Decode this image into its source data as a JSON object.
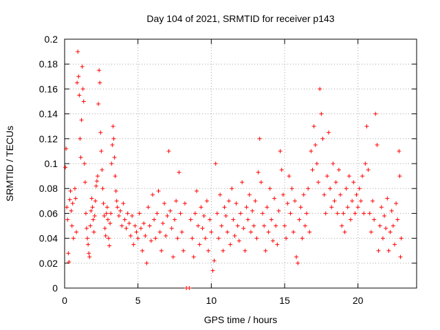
{
  "chart_data": {
    "type": "scatter",
    "title": "Day 104 of 2021, SRMTID for receiver p143",
    "xlabel": "GPS time / hours",
    "ylabel": "SRMTID / TECUs",
    "xlim": [
      0,
      24
    ],
    "ylim": [
      0,
      0.2
    ],
    "xticks": [
      0,
      5,
      10,
      15,
      20
    ],
    "xtick_labels": [
      "0",
      "5",
      "10",
      "15",
      "20"
    ],
    "yticks": [
      0,
      0.02,
      0.04,
      0.06,
      0.08,
      0.1,
      0.12,
      0.14,
      0.16,
      0.18,
      0.2
    ],
    "ytick_labels": [
      "0",
      "0.02",
      "0.04",
      "0.06",
      "0.08",
      "0.1",
      "0.12",
      "0.14",
      "0.16",
      "0.18",
      "0.2"
    ],
    "grid": true,
    "marker": "+",
    "color": "#ff0000",
    "series": [
      {
        "name": "SRMTID",
        "points": [
          [
            0.05,
            0.097
          ],
          [
            0.1,
            0.112
          ],
          [
            0.15,
            0.065
          ],
          [
            0.2,
            0.055
          ],
          [
            0.25,
            0.028
          ],
          [
            0.3,
            0.021
          ],
          [
            0.35,
            0.071
          ],
          [
            0.4,
            0.078
          ],
          [
            0.45,
            0.062
          ],
          [
            0.5,
            0.05
          ],
          [
            0.55,
            0.068
          ],
          [
            0.6,
            0.04
          ],
          [
            0.7,
            0.08
          ],
          [
            0.75,
            0.072
          ],
          [
            0.8,
            0.045
          ],
          [
            0.85,
            0.165
          ],
          [
            0.9,
            0.19
          ],
          [
            0.95,
            0.17
          ],
          [
            1.0,
            0.155
          ],
          [
            1.05,
            0.12
          ],
          [
            1.1,
            0.105
          ],
          [
            1.15,
            0.135
          ],
          [
            1.2,
            0.178
          ],
          [
            1.25,
            0.16
          ],
          [
            1.3,
            0.15
          ],
          [
            1.35,
            0.1
          ],
          [
            1.4,
            0.085
          ],
          [
            1.45,
            0.06
          ],
          [
            1.5,
            0.048
          ],
          [
            1.55,
            0.04
          ],
          [
            1.6,
            0.035
          ],
          [
            1.65,
            0.028
          ],
          [
            1.7,
            0.025
          ],
          [
            1.75,
            0.05
          ],
          [
            1.8,
            0.062
          ],
          [
            1.85,
            0.072
          ],
          [
            1.9,
            0.065
          ],
          [
            1.95,
            0.055
          ],
          [
            2.0,
            0.045
          ],
          [
            2.05,
            0.058
          ],
          [
            2.1,
            0.07
          ],
          [
            2.15,
            0.082
          ],
          [
            2.2,
            0.086
          ],
          [
            2.25,
            0.09
          ],
          [
            2.3,
            0.148
          ],
          [
            2.35,
            0.175
          ],
          [
            2.4,
            0.165
          ],
          [
            2.45,
            0.125
          ],
          [
            2.5,
            0.11
          ],
          [
            2.55,
            0.095
          ],
          [
            2.6,
            0.08
          ],
          [
            2.65,
            0.068
          ],
          [
            2.7,
            0.058
          ],
          [
            2.75,
            0.048
          ],
          [
            2.8,
            0.042
          ],
          [
            2.85,
            0.06
          ],
          [
            2.9,
            0.065
          ],
          [
            2.95,
            0.055
          ],
          [
            3.0,
            0.04
          ],
          [
            3.05,
            0.034
          ],
          [
            3.1,
            0.052
          ],
          [
            3.15,
            0.06
          ],
          [
            3.2,
            0.1
          ],
          [
            3.25,
            0.115
          ],
          [
            3.3,
            0.13
          ],
          [
            3.35,
            0.12
          ],
          [
            3.4,
            0.105
          ],
          [
            3.45,
            0.09
          ],
          [
            3.5,
            0.078
          ],
          [
            3.55,
            0.07
          ],
          [
            3.6,
            0.065
          ],
          [
            3.7,
            0.058
          ],
          [
            3.8,
            0.062
          ],
          [
            3.9,
            0.05
          ],
          [
            4.0,
            0.068
          ],
          [
            4.1,
            0.055
          ],
          [
            4.2,
            0.048
          ],
          [
            4.3,
            0.06
          ],
          [
            4.4,
            0.052
          ],
          [
            4.5,
            0.042
          ],
          [
            4.6,
            0.058
          ],
          [
            4.7,
            0.035
          ],
          [
            4.8,
            0.05
          ],
          [
            4.9,
            0.045
          ],
          [
            5.0,
            0.04
          ],
          [
            5.1,
            0.06
          ],
          [
            5.2,
            0.048
          ],
          [
            5.3,
            0.03
          ],
          [
            5.4,
            0.052
          ],
          [
            5.5,
            0.042
          ],
          [
            5.6,
            0.02
          ],
          [
            5.7,
            0.065
          ],
          [
            5.8,
            0.05
          ],
          [
            5.9,
            0.038
          ],
          [
            6.0,
            0.075
          ],
          [
            6.1,
            0.055
          ],
          [
            6.2,
            0.04
          ],
          [
            6.3,
            0.06
          ],
          [
            6.4,
            0.078
          ],
          [
            6.5,
            0.045
          ],
          [
            6.6,
            0.03
          ],
          [
            6.7,
            0.052
          ],
          [
            6.8,
            0.068
          ],
          [
            6.9,
            0.042
          ],
          [
            7.0,
            0.058
          ],
          [
            7.1,
            0.11
          ],
          [
            7.2,
            0.062
          ],
          [
            7.3,
            0.048
          ],
          [
            7.4,
            0.025
          ],
          [
            7.5,
            0.055
          ],
          [
            7.6,
            0.07
          ],
          [
            7.7,
            0.04
          ],
          [
            7.8,
            0.093
          ],
          [
            7.9,
            0.06
          ],
          [
            8.0,
            0.045
          ],
          [
            8.1,
            0.03
          ],
          [
            8.2,
            0.068
          ],
          [
            8.3,
            0.0
          ],
          [
            8.5,
            0.0
          ],
          [
            8.6,
            0.055
          ],
          [
            8.7,
            0.04
          ],
          [
            8.8,
            0.025
          ],
          [
            8.9,
            0.06
          ],
          [
            9.0,
            0.078
          ],
          [
            9.1,
            0.05
          ],
          [
            9.2,
            0.035
          ],
          [
            9.3,
            0.065
          ],
          [
            9.4,
            0.048
          ],
          [
            9.5,
            0.058
          ],
          [
            9.6,
            0.04
          ],
          [
            9.7,
            0.07
          ],
          [
            9.8,
            0.03
          ],
          [
            9.9,
            0.055
          ],
          [
            10.0,
            0.045
          ],
          [
            10.1,
            0.014
          ],
          [
            10.2,
            0.022
          ],
          [
            10.3,
            0.1
          ],
          [
            10.4,
            0.06
          ],
          [
            10.5,
            0.04
          ],
          [
            10.6,
            0.075
          ],
          [
            10.7,
            0.05
          ],
          [
            10.8,
            0.03
          ],
          [
            10.9,
            0.065
          ],
          [
            11.0,
            0.058
          ],
          [
            11.1,
            0.045
          ],
          [
            11.2,
            0.07
          ],
          [
            11.3,
            0.035
          ],
          [
            11.4,
            0.08
          ],
          [
            11.5,
            0.055
          ],
          [
            11.6,
            0.042
          ],
          [
            11.7,
            0.068
          ],
          [
            11.8,
            0.05
          ],
          [
            11.9,
            0.038
          ],
          [
            12.0,
            0.06
          ],
          [
            12.1,
            0.085
          ],
          [
            12.2,
            0.048
          ],
          [
            12.3,
            0.03
          ],
          [
            12.4,
            0.065
          ],
          [
            12.5,
            0.055
          ],
          [
            12.6,
            0.075
          ],
          [
            12.7,
            0.045
          ],
          [
            12.8,
            0.062
          ],
          [
            12.9,
            0.05
          ],
          [
            13.0,
            0.07
          ],
          [
            13.1,
            0.04
          ],
          [
            13.2,
            0.093
          ],
          [
            13.3,
            0.12
          ],
          [
            13.4,
            0.085
          ],
          [
            13.5,
            0.06
          ],
          [
            13.6,
            0.05
          ],
          [
            13.7,
            0.03
          ],
          [
            13.8,
            0.065
          ],
          [
            13.9,
            0.045
          ],
          [
            14.0,
            0.08
          ],
          [
            14.1,
            0.055
          ],
          [
            14.2,
            0.038
          ],
          [
            14.3,
            0.072
          ],
          [
            14.4,
            0.05
          ],
          [
            14.5,
            0.035
          ],
          [
            14.6,
            0.062
          ],
          [
            14.7,
            0.11
          ],
          [
            14.8,
            0.095
          ],
          [
            14.9,
            0.075
          ],
          [
            15.0,
            0.05
          ],
          [
            15.1,
            0.04
          ],
          [
            15.2,
            0.068
          ],
          [
            15.3,
            0.09
          ],
          [
            15.4,
            0.06
          ],
          [
            15.5,
            0.08
          ],
          [
            15.6,
            0.045
          ],
          [
            15.7,
            0.07
          ],
          [
            15.8,
            0.025
          ],
          [
            15.9,
            0.02
          ],
          [
            16.0,
            0.055
          ],
          [
            16.1,
            0.065
          ],
          [
            16.2,
            0.04
          ],
          [
            16.3,
            0.075
          ],
          [
            16.4,
            0.05
          ],
          [
            16.5,
            0.06
          ],
          [
            16.6,
            0.08
          ],
          [
            16.7,
            0.045
          ],
          [
            16.8,
            0.11
          ],
          [
            16.9,
            0.095
          ],
          [
            17.0,
            0.13
          ],
          [
            17.1,
            0.115
          ],
          [
            17.2,
            0.1
          ],
          [
            17.3,
            0.085
          ],
          [
            17.4,
            0.16
          ],
          [
            17.5,
            0.14
          ],
          [
            17.6,
            0.12
          ],
          [
            17.7,
            0.075
          ],
          [
            17.8,
            0.06
          ],
          [
            17.9,
            0.09
          ],
          [
            18.0,
            0.125
          ],
          [
            18.1,
            0.08
          ],
          [
            18.2,
            0.065
          ],
          [
            18.3,
            0.1
          ],
          [
            18.4,
            0.07
          ],
          [
            18.5,
            0.085
          ],
          [
            18.6,
            0.06
          ],
          [
            18.7,
            0.095
          ],
          [
            18.8,
            0.075
          ],
          [
            18.9,
            0.05
          ],
          [
            19.0,
            0.06
          ],
          [
            19.1,
            0.045
          ],
          [
            19.2,
            0.08
          ],
          [
            19.3,
            0.065
          ],
          [
            19.4,
            0.09
          ],
          [
            19.5,
            0.055
          ],
          [
            19.6,
            0.07
          ],
          [
            19.7,
            0.085
          ],
          [
            19.8,
            0.06
          ],
          [
            19.9,
            0.075
          ],
          [
            20.0,
            0.065
          ],
          [
            20.1,
            0.08
          ],
          [
            20.2,
            0.07
          ],
          [
            20.3,
            0.09
          ],
          [
            20.4,
            0.06
          ],
          [
            20.5,
            0.1
          ],
          [
            20.6,
            0.13
          ],
          [
            20.7,
            0.095
          ],
          [
            20.8,
            0.06
          ],
          [
            20.9,
            0.045
          ],
          [
            21.0,
            0.07
          ],
          [
            21.1,
            0.055
          ],
          [
            21.2,
            0.14
          ],
          [
            21.3,
            0.115
          ],
          [
            21.4,
            0.03
          ],
          [
            21.5,
            0.05
          ],
          [
            21.6,
            0.065
          ],
          [
            21.7,
            0.04
          ],
          [
            21.8,
            0.058
          ],
          [
            21.9,
            0.048
          ],
          [
            22.0,
            0.072
          ],
          [
            22.1,
            0.03
          ],
          [
            22.2,
            0.045
          ],
          [
            22.3,
            0.062
          ],
          [
            22.4,
            0.05
          ],
          [
            22.5,
            0.035
          ],
          [
            22.6,
            0.068
          ],
          [
            22.7,
            0.055
          ],
          [
            22.8,
            0.11
          ],
          [
            22.85,
            0.09
          ],
          [
            22.9,
            0.025
          ],
          [
            22.95,
            0.04
          ]
        ]
      }
    ]
  }
}
